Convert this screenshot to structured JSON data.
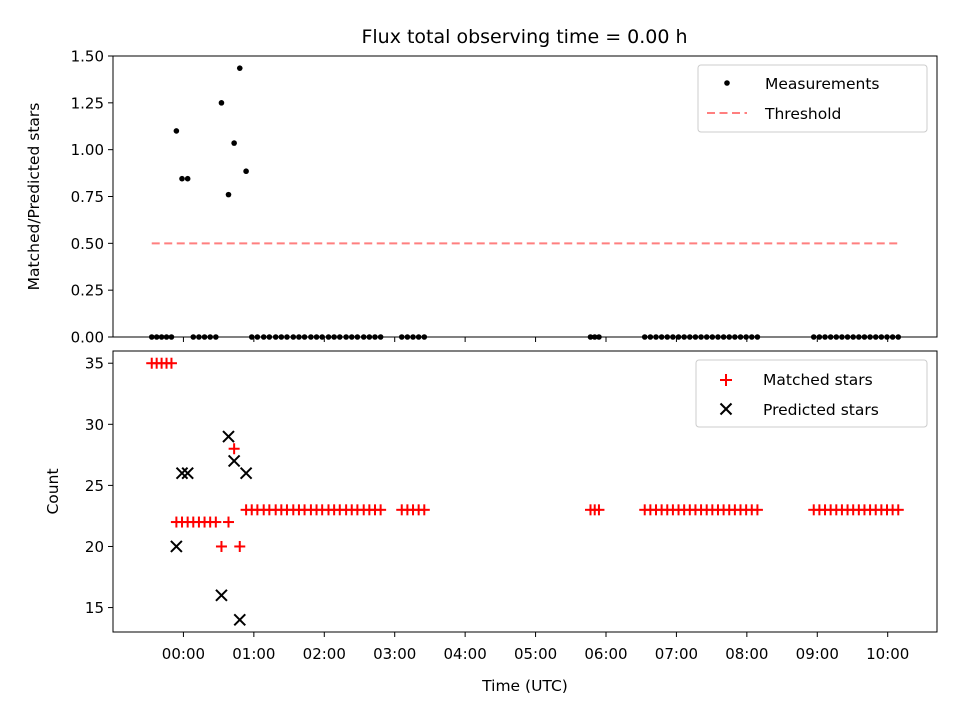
{
  "chart_data": [
    {
      "type": "scatter",
      "title": "Flux total observing time = 0.00 h",
      "xlabel": "",
      "ylabel": "Matched/Predicted stars",
      "xlim": [
        -1.0,
        10.7
      ],
      "ylim": [
        0.0,
        1.5
      ],
      "yticks": [
        "0.00",
        "0.25",
        "0.50",
        "0.75",
        "1.00",
        "1.25",
        "1.50"
      ],
      "legend_position": "top-right",
      "threshold": 0.5,
      "threshold_x_range": [
        -0.45,
        10.15
      ],
      "series": [
        {
          "name": "Measurements",
          "marker": "dot",
          "color": "#000000",
          "points": [
            [
              -0.45,
              0
            ],
            [
              -0.38,
              0
            ],
            [
              -0.31,
              0
            ],
            [
              -0.24,
              0
            ],
            [
              -0.17,
              0
            ],
            [
              -0.1,
              1.1
            ],
            [
              -0.02,
              0.845
            ],
            [
              0.06,
              0.845
            ],
            [
              0.14,
              0
            ],
            [
              0.22,
              0
            ],
            [
              0.3,
              0
            ],
            [
              0.38,
              0
            ],
            [
              0.46,
              0
            ],
            [
              0.54,
              1.25
            ],
            [
              0.64,
              0.76
            ],
            [
              0.72,
              1.035
            ],
            [
              0.8,
              1.435
            ],
            [
              0.89,
              0.885
            ],
            [
              0.97,
              0
            ],
            [
              1.05,
              0
            ],
            [
              1.14,
              0
            ],
            [
              1.22,
              0
            ],
            [
              1.31,
              0
            ],
            [
              1.39,
              0
            ],
            [
              1.47,
              0
            ],
            [
              1.56,
              0
            ],
            [
              1.64,
              0
            ],
            [
              1.72,
              0
            ],
            [
              1.81,
              0
            ],
            [
              1.89,
              0
            ],
            [
              1.97,
              0
            ],
            [
              2.06,
              0
            ],
            [
              2.14,
              0
            ],
            [
              2.22,
              0
            ],
            [
              2.31,
              0
            ],
            [
              2.39,
              0
            ],
            [
              2.47,
              0
            ],
            [
              2.56,
              0
            ],
            [
              2.64,
              0
            ],
            [
              2.72,
              0
            ],
            [
              2.8,
              0
            ],
            [
              3.1,
              0
            ],
            [
              3.18,
              0
            ],
            [
              3.26,
              0
            ],
            [
              3.34,
              0
            ],
            [
              3.42,
              0
            ],
            [
              5.78,
              0
            ],
            [
              5.84,
              0
            ],
            [
              5.9,
              0
            ],
            [
              6.55,
              0
            ],
            [
              6.63,
              0
            ],
            [
              6.71,
              0
            ],
            [
              6.79,
              0
            ],
            [
              6.87,
              0
            ],
            [
              6.95,
              0
            ],
            [
              7.03,
              0
            ],
            [
              7.11,
              0
            ],
            [
              7.19,
              0
            ],
            [
              7.27,
              0
            ],
            [
              7.35,
              0
            ],
            [
              7.43,
              0
            ],
            [
              7.51,
              0
            ],
            [
              7.59,
              0
            ],
            [
              7.67,
              0
            ],
            [
              7.75,
              0
            ],
            [
              7.83,
              0
            ],
            [
              7.91,
              0
            ],
            [
              7.99,
              0
            ],
            [
              8.07,
              0
            ],
            [
              8.15,
              0
            ],
            [
              8.95,
              0
            ],
            [
              9.03,
              0
            ],
            [
              9.11,
              0
            ],
            [
              9.19,
              0
            ],
            [
              9.27,
              0
            ],
            [
              9.35,
              0
            ],
            [
              9.43,
              0
            ],
            [
              9.51,
              0
            ],
            [
              9.59,
              0
            ],
            [
              9.67,
              0
            ],
            [
              9.75,
              0
            ],
            [
              9.83,
              0
            ],
            [
              9.91,
              0
            ],
            [
              9.99,
              0
            ],
            [
              10.07,
              0
            ],
            [
              10.15,
              0
            ]
          ]
        },
        {
          "name": "Threshold",
          "marker": "dashed-line",
          "color": "#ff7f7f"
        }
      ]
    },
    {
      "type": "scatter",
      "title": "",
      "xlabel": "Time (UTC)",
      "ylabel": "Count",
      "xlim": [
        -1.0,
        10.7
      ],
      "ylim": [
        13.0,
        36.0
      ],
      "yticks": [
        "15",
        "20",
        "25",
        "30",
        "35"
      ],
      "xticks": [
        "00:00",
        "01:00",
        "02:00",
        "03:00",
        "04:00",
        "05:00",
        "06:00",
        "07:00",
        "08:00",
        "09:00",
        "10:00"
      ],
      "legend_position": "top-right",
      "series": [
        {
          "name": "Matched stars",
          "marker": "plus",
          "color": "#ff0000",
          "points": [
            [
              -0.45,
              35
            ],
            [
              -0.38,
              35
            ],
            [
              -0.31,
              35
            ],
            [
              -0.24,
              35
            ],
            [
              -0.17,
              35
            ],
            [
              -0.1,
              22
            ],
            [
              -0.02,
              22
            ],
            [
              0.06,
              22
            ],
            [
              0.14,
              22
            ],
            [
              0.22,
              22
            ],
            [
              0.3,
              22
            ],
            [
              0.38,
              22
            ],
            [
              0.46,
              22
            ],
            [
              0.54,
              20
            ],
            [
              0.64,
              22
            ],
            [
              0.72,
              28
            ],
            [
              0.8,
              20
            ],
            [
              0.89,
              23
            ],
            [
              0.97,
              23
            ],
            [
              1.05,
              23
            ],
            [
              1.14,
              23
            ],
            [
              1.22,
              23
            ],
            [
              1.31,
              23
            ],
            [
              1.39,
              23
            ],
            [
              1.47,
              23
            ],
            [
              1.56,
              23
            ],
            [
              1.64,
              23
            ],
            [
              1.72,
              23
            ],
            [
              1.81,
              23
            ],
            [
              1.89,
              23
            ],
            [
              1.97,
              23
            ],
            [
              2.06,
              23
            ],
            [
              2.14,
              23
            ],
            [
              2.22,
              23
            ],
            [
              2.31,
              23
            ],
            [
              2.39,
              23
            ],
            [
              2.47,
              23
            ],
            [
              2.56,
              23
            ],
            [
              2.64,
              23
            ],
            [
              2.72,
              23
            ],
            [
              2.8,
              23
            ],
            [
              3.1,
              23
            ],
            [
              3.18,
              23
            ],
            [
              3.26,
              23
            ],
            [
              3.34,
              23
            ],
            [
              3.42,
              23
            ],
            [
              5.78,
              23
            ],
            [
              5.84,
              23
            ],
            [
              5.9,
              23
            ],
            [
              6.55,
              23
            ],
            [
              6.63,
              23
            ],
            [
              6.71,
              23
            ],
            [
              6.79,
              23
            ],
            [
              6.87,
              23
            ],
            [
              6.95,
              23
            ],
            [
              7.03,
              23
            ],
            [
              7.11,
              23
            ],
            [
              7.19,
              23
            ],
            [
              7.27,
              23
            ],
            [
              7.35,
              23
            ],
            [
              7.43,
              23
            ],
            [
              7.51,
              23
            ],
            [
              7.59,
              23
            ],
            [
              7.67,
              23
            ],
            [
              7.75,
              23
            ],
            [
              7.83,
              23
            ],
            [
              7.91,
              23
            ],
            [
              7.99,
              23
            ],
            [
              8.07,
              23
            ],
            [
              8.15,
              23
            ],
            [
              8.95,
              23
            ],
            [
              9.03,
              23
            ],
            [
              9.11,
              23
            ],
            [
              9.19,
              23
            ],
            [
              9.27,
              23
            ],
            [
              9.35,
              23
            ],
            [
              9.43,
              23
            ],
            [
              9.51,
              23
            ],
            [
              9.59,
              23
            ],
            [
              9.67,
              23
            ],
            [
              9.75,
              23
            ],
            [
              9.83,
              23
            ],
            [
              9.91,
              23
            ],
            [
              9.99,
              23
            ],
            [
              10.07,
              23
            ],
            [
              10.15,
              23
            ]
          ]
        },
        {
          "name": "Predicted stars",
          "marker": "x",
          "color": "#000000",
          "points": [
            [
              -0.1,
              20
            ],
            [
              -0.02,
              26
            ],
            [
              0.06,
              26
            ],
            [
              0.54,
              16
            ],
            [
              0.64,
              29
            ],
            [
              0.72,
              27
            ],
            [
              0.8,
              14
            ],
            [
              0.89,
              26
            ]
          ]
        }
      ]
    }
  ]
}
